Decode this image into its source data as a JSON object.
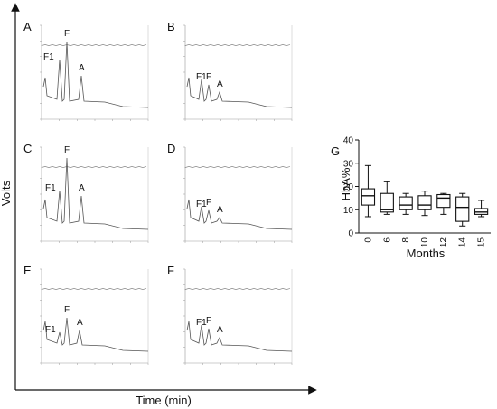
{
  "figure": {
    "y_axis_title": "Volts",
    "x_axis_title": "Time (min)"
  },
  "panels": [
    {
      "letter": "A",
      "peaks": [
        {
          "label": "F1"
        },
        {
          "label": "F"
        },
        {
          "label": "A"
        }
      ]
    },
    {
      "letter": "B",
      "peaks": [
        {
          "label": "F1"
        },
        {
          "label": "F"
        },
        {
          "label": "A"
        }
      ]
    },
    {
      "letter": "C",
      "peaks": [
        {
          "label": "F1"
        },
        {
          "label": "F"
        },
        {
          "label": "A"
        }
      ]
    },
    {
      "letter": "D",
      "peaks": [
        {
          "label": "F1"
        },
        {
          "label": "F"
        },
        {
          "label": "A"
        }
      ]
    },
    {
      "letter": "E",
      "peaks": [
        {
          "label": "F1"
        },
        {
          "label": "F"
        },
        {
          "label": "A"
        }
      ]
    },
    {
      "letter": "F",
      "peaks": [
        {
          "label": "F1"
        },
        {
          "label": "F"
        },
        {
          "label": "A"
        }
      ]
    }
  ],
  "chart_data": {
    "type": "box",
    "panel_letter": "G",
    "title": "",
    "xlabel": "Months",
    "ylabel": "HbA%",
    "ylim": [
      0,
      40
    ],
    "yticks": [
      0,
      10,
      20,
      30,
      40
    ],
    "grid": false,
    "categories": [
      "0",
      "6",
      "8",
      "10",
      "12",
      "14",
      "15"
    ],
    "boxes": [
      {
        "category": "0",
        "min": 7,
        "q1": 12,
        "median": 16,
        "q3": 19,
        "max": 29
      },
      {
        "category": "6",
        "min": 8,
        "q1": 9,
        "median": 10,
        "q3": 17,
        "max": 22
      },
      {
        "category": "8",
        "min": 8,
        "q1": 10,
        "median": 12,
        "q3": 15.5,
        "max": 17
      },
      {
        "category": "10",
        "min": 7.5,
        "q1": 10,
        "median": 12,
        "q3": 16,
        "max": 18
      },
      {
        "category": "12",
        "min": 8,
        "q1": 11,
        "median": 15,
        "q3": 16.5,
        "max": 17
      },
      {
        "category": "14",
        "min": 3,
        "q1": 5,
        "median": 11,
        "q3": 15.5,
        "max": 17
      },
      {
        "category": "15",
        "min": 7,
        "q1": 8,
        "median": 9,
        "q3": 10.5,
        "max": 14
      }
    ]
  }
}
